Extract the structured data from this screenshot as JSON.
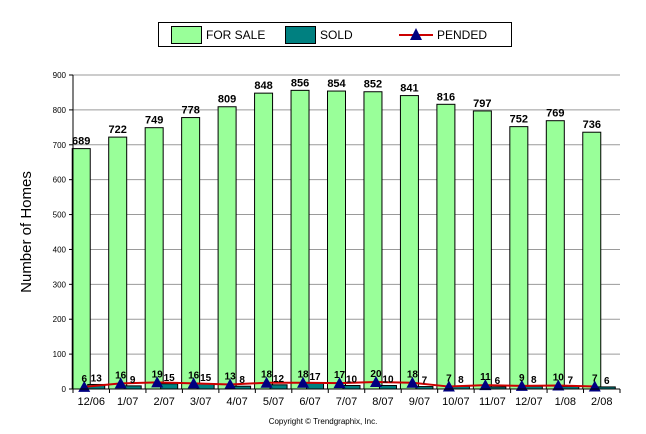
{
  "chart_data": {
    "type": "bar",
    "categories": [
      "12/06",
      "1/07",
      "2/07",
      "3/07",
      "4/07",
      "5/07",
      "6/07",
      "7/07",
      "8/07",
      "9/07",
      "10/07",
      "11/07",
      "12/07",
      "1/08",
      "2/08"
    ],
    "series": [
      {
        "name": "FOR SALE",
        "kind": "bar",
        "color": "#99ff99",
        "values": [
          689,
          722,
          749,
          778,
          809,
          848,
          856,
          854,
          852,
          841,
          816,
          797,
          752,
          769,
          736
        ],
        "labels": [
          "689",
          "722",
          "749",
          "778",
          "809",
          "848",
          "856",
          "854",
          "852",
          "841",
          "816",
          "797",
          "752",
          "769",
          "736"
        ]
      },
      {
        "name": "SOLD",
        "kind": "bar",
        "color": "#008080",
        "values": [
          13,
          9,
          15,
          15,
          8,
          12,
          17,
          10,
          10,
          7,
          8,
          6,
          8,
          7,
          6
        ],
        "labels": [
          "13",
          "9",
          "15",
          "15",
          "8",
          "12",
          "17",
          "10",
          "10",
          "7",
          "8",
          "6",
          "8",
          "7",
          "6"
        ]
      },
      {
        "name": "PENDED",
        "kind": "line",
        "color": "#cc0000",
        "marker_color": "#000080",
        "values": [
          6,
          16,
          19,
          16,
          13,
          18,
          18,
          17,
          20,
          18,
          7,
          11,
          9,
          10,
          7
        ],
        "labels": [
          "6",
          "16",
          "19",
          "16",
          "13",
          "18",
          "18",
          "17",
          "20",
          "18",
          "7",
          "11",
          "9",
          "10",
          "7"
        ]
      }
    ],
    "ylabel": "Number of Homes",
    "ylim": [
      0,
      900
    ],
    "yticks": [
      0,
      100,
      200,
      300,
      400,
      500,
      600,
      700,
      800,
      900
    ],
    "legend_position": "top"
  },
  "legend": {
    "for_sale_label": "FOR SALE",
    "sold_label": "SOLD",
    "pended_label": "PENDED"
  },
  "copyright": "Copyright © Trendgraphix, Inc."
}
